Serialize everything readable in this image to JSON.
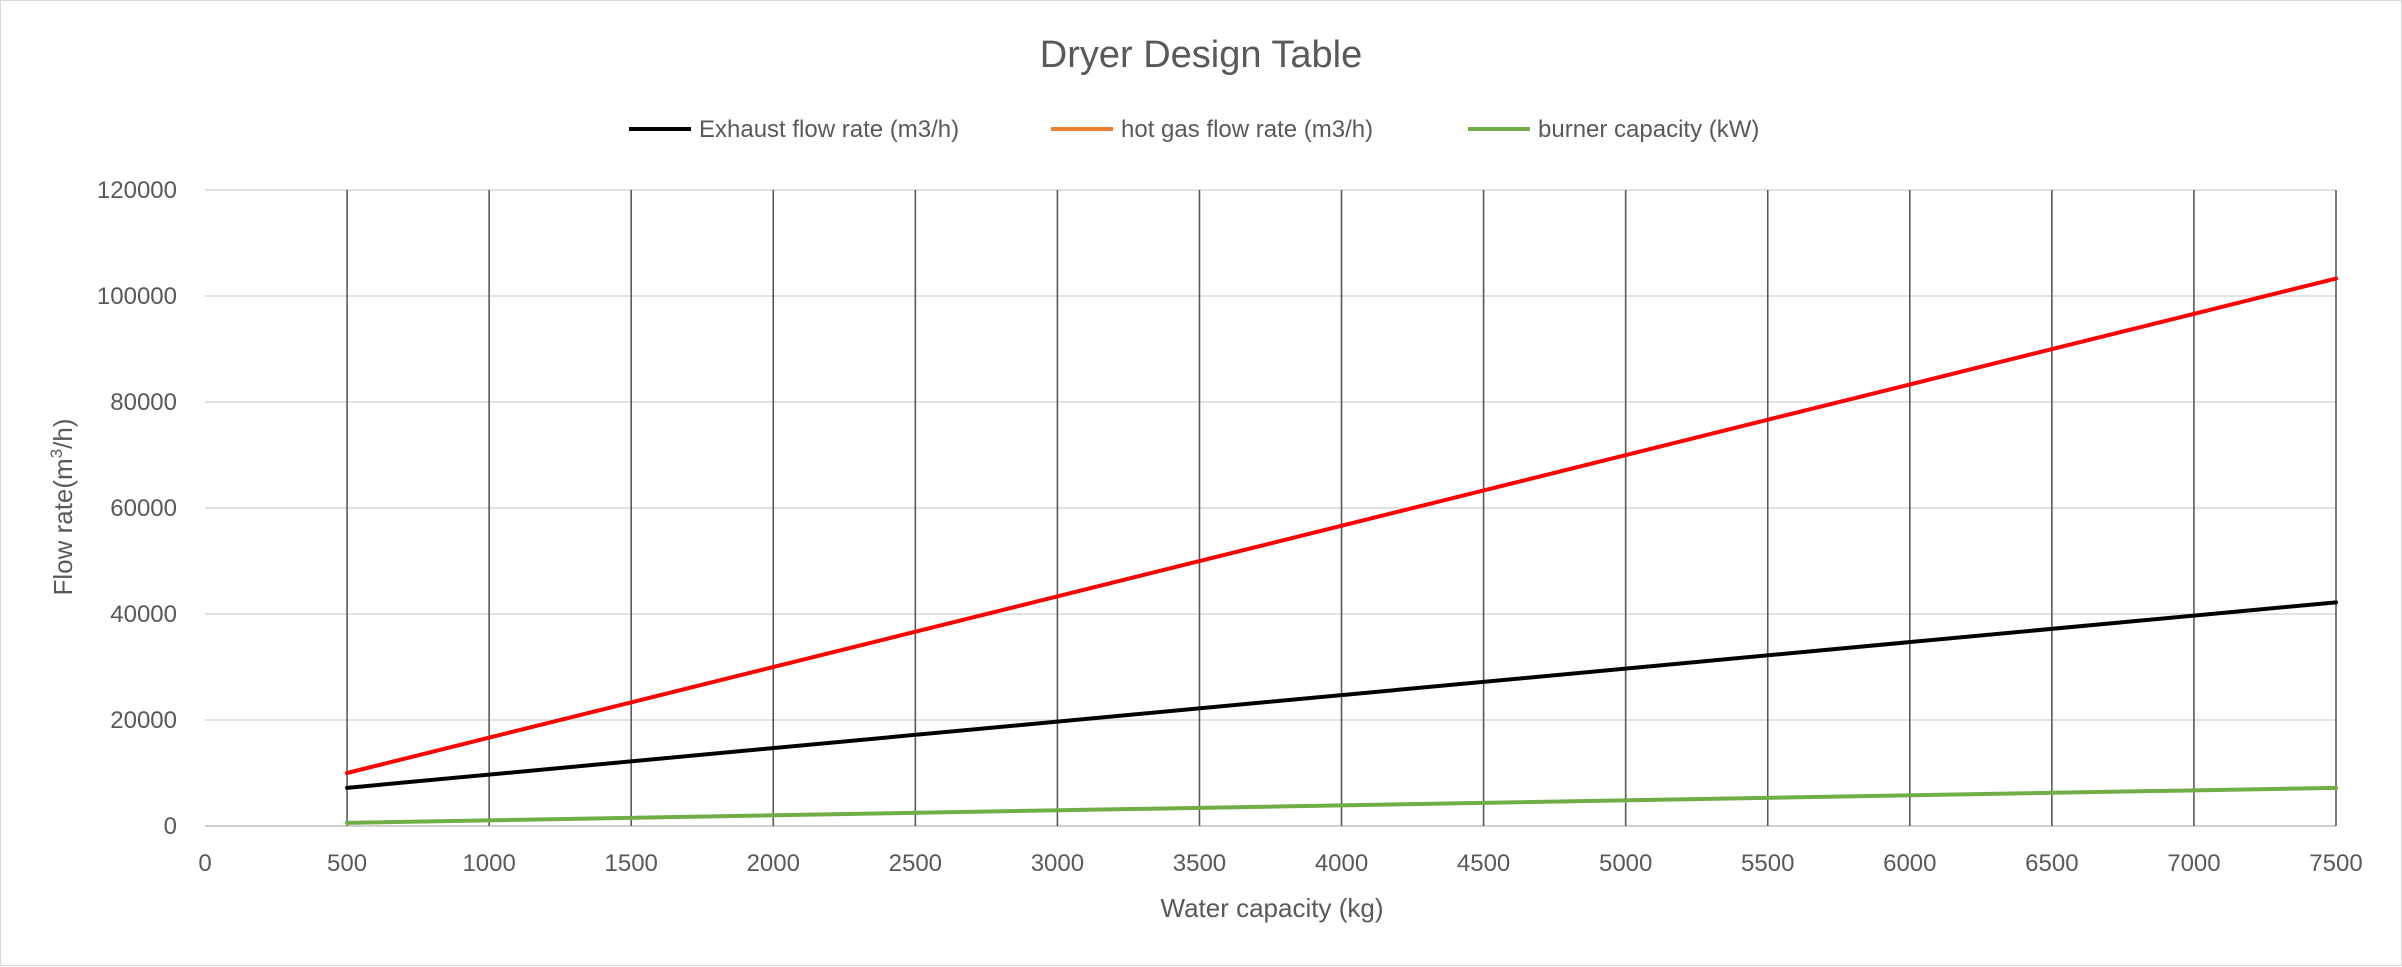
{
  "chart_data": {
    "type": "line",
    "title": "Dryer Design Table",
    "xlabel": "Water capacity (kg)",
    "ylabel": {
      "prefix": "Flow rate(m",
      "sup": "3",
      "suffix": "/h)"
    },
    "xlim": [
      0,
      7500
    ],
    "ylim": [
      0,
      120000
    ],
    "x_ticks": [
      0,
      500,
      1000,
      1500,
      2000,
      2500,
      3000,
      3500,
      4000,
      4500,
      5000,
      5500,
      6000,
      6500,
      7000,
      7500
    ],
    "y_ticks": [
      0,
      20000,
      40000,
      60000,
      80000,
      100000,
      120000
    ],
    "grid": {
      "vertical": true,
      "horizontal": true
    },
    "legend_position": "top",
    "x": [
      500,
      7500
    ],
    "series": [
      {
        "name": "Exhaust flow rate (m3/h)",
        "color": "#000000",
        "values": [
          7200,
          42200
        ]
      },
      {
        "name": "hot gas flow rate (m3/h)",
        "color": "#ff0000",
        "legend_color": "#ed7d31",
        "values": [
          10000,
          103300
        ]
      },
      {
        "name": "burner capacity (kW)",
        "color": "#70ad47",
        "values": [
          600,
          7200
        ]
      }
    ]
  }
}
